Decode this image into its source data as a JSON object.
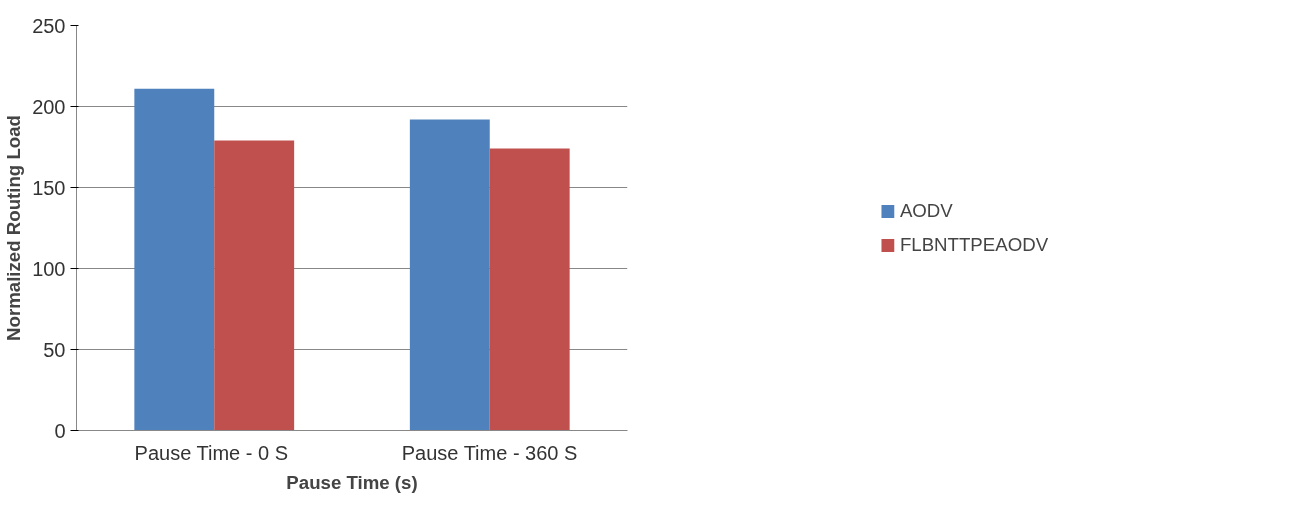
{
  "chart_data": {
    "type": "bar",
    "xlabel": "Pause Time (s)",
    "ylabel": "Normalized Routing Load",
    "categories": [
      "Pause Time -  0 S",
      "Pause Time - 360 S"
    ],
    "series": [
      {
        "name": "AODV",
        "color": "#4f81bd",
        "values": [
          211,
          192
        ]
      },
      {
        "name": "FLBNTTPEAODV",
        "color": "#c0504d",
        "values": [
          179,
          174
        ]
      }
    ],
    "ylim": [
      0,
      250
    ],
    "yticks": [
      0,
      50,
      100,
      150,
      200,
      250
    ],
    "grid": "y",
    "legend": "right"
  }
}
